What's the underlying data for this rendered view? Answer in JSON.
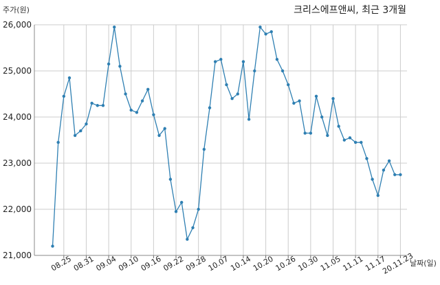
{
  "chart_data": {
    "type": "line",
    "title": "크리스에프앤씨, 최근 3개월",
    "ylabel": "주가(원)",
    "xlabel": "날짜(일)",
    "ylim": [
      21000,
      26000
    ],
    "yticks": [
      21000,
      22000,
      23000,
      24000,
      25000,
      26000
    ],
    "ytick_labels": [
      "21,000",
      "22,000",
      "23,000",
      "24,000",
      "25,000",
      "26,000"
    ],
    "xtick_labels": [
      "08.25",
      "08.31",
      "09.04",
      "09.10",
      "09.16",
      "09.22",
      "09.28",
      "10.07",
      "10.14",
      "10.20",
      "10.26",
      "10.30",
      "11.05",
      "11.11",
      "11.17",
      "20.11.23"
    ],
    "xtick_index": [
      2,
      6,
      10,
      14,
      18,
      22,
      26,
      30,
      34,
      38,
      42,
      46,
      50,
      54,
      58,
      62
    ],
    "grid": true,
    "color": "#2e7fb2",
    "series": [
      {
        "values": [
          21200,
          23450,
          24450,
          24850,
          23600,
          23700,
          23850,
          24300,
          24250,
          24250,
          25150,
          25950,
          25100,
          24500,
          24150,
          24100,
          24350,
          24600,
          24050,
          23600,
          23750,
          22650,
          21950,
          22150,
          21350,
          21600,
          22000,
          23300,
          24200,
          25200,
          25250,
          24700,
          24400,
          24500,
          25200,
          23950,
          25000,
          25950,
          25800,
          25850,
          25250,
          25000,
          24700,
          24300,
          24350,
          23650,
          23650,
          24450,
          24000,
          23600,
          24400,
          23800,
          23500,
          23550,
          23450,
          23450,
          23100,
          22650,
          22300,
          22850,
          23050,
          22750,
          22750
        ]
      }
    ]
  }
}
